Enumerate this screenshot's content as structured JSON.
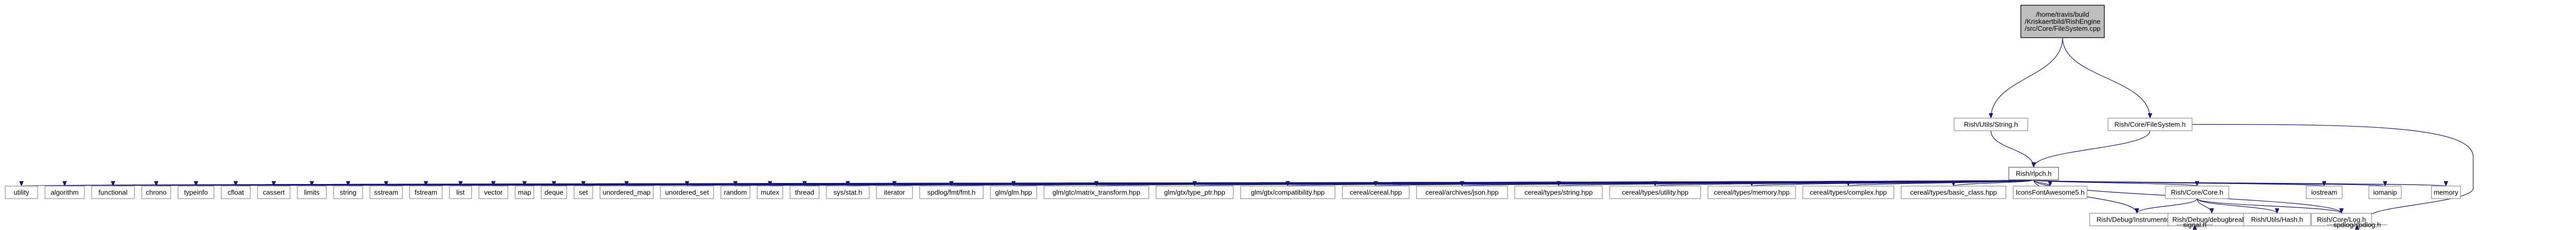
{
  "graph": {
    "root": [
      "/home/travis/build",
      "/Kriskaertbild/RishEngine",
      "/src/Core/FileSystem.cpp"
    ],
    "string_header": "Rish/Utils/String.h",
    "filesystem_header": "Rish/Core/FileSystem.h",
    "rlpch": "Rish/rlpch.h",
    "includes": [
      "utility",
      "algorithm",
      "functional",
      "chrono",
      "typeinfo",
      "cfloat",
      "cassert",
      "limits",
      "string",
      "sstream",
      "fstream",
      "list",
      "vector",
      "map",
      "deque",
      "set",
      "unordered_map",
      "unordered_set",
      "random",
      "mutex",
      "thread",
      "sys/stat.h",
      "iterator",
      "spdlog/fmt/fmt.h",
      "glm/glm.hpp",
      "glm/gtc/matrix_transform.hpp",
      "glm/gtx/type_ptr.hpp",
      "glm/gtx/compatibility.hpp",
      "cereal/cereal.hpp",
      "cereal/archives/json.hpp",
      "cereal/types/string.hpp",
      "cereal/types/utility.hpp",
      "cereal/types/memory.hpp",
      "cereal/types/complex.hpp",
      "cereal/types/basic_class.hpp",
      "IconsFontAwesome5.h"
    ],
    "core": "Rish/Core/Core.h",
    "iostream": "iostream",
    "iomanip": "iomanip",
    "memory": "memory",
    "instrumentor": "Rish/Debug/Instrumentor.h",
    "debugbreak": "Rish/Debug/debugbreak.h",
    "hash": "Rish/Utils/Hash.h",
    "log": "Rish/Core/Log.h",
    "signal": "signal.h",
    "spdlog": "spdlog/spdlog.h"
  }
}
